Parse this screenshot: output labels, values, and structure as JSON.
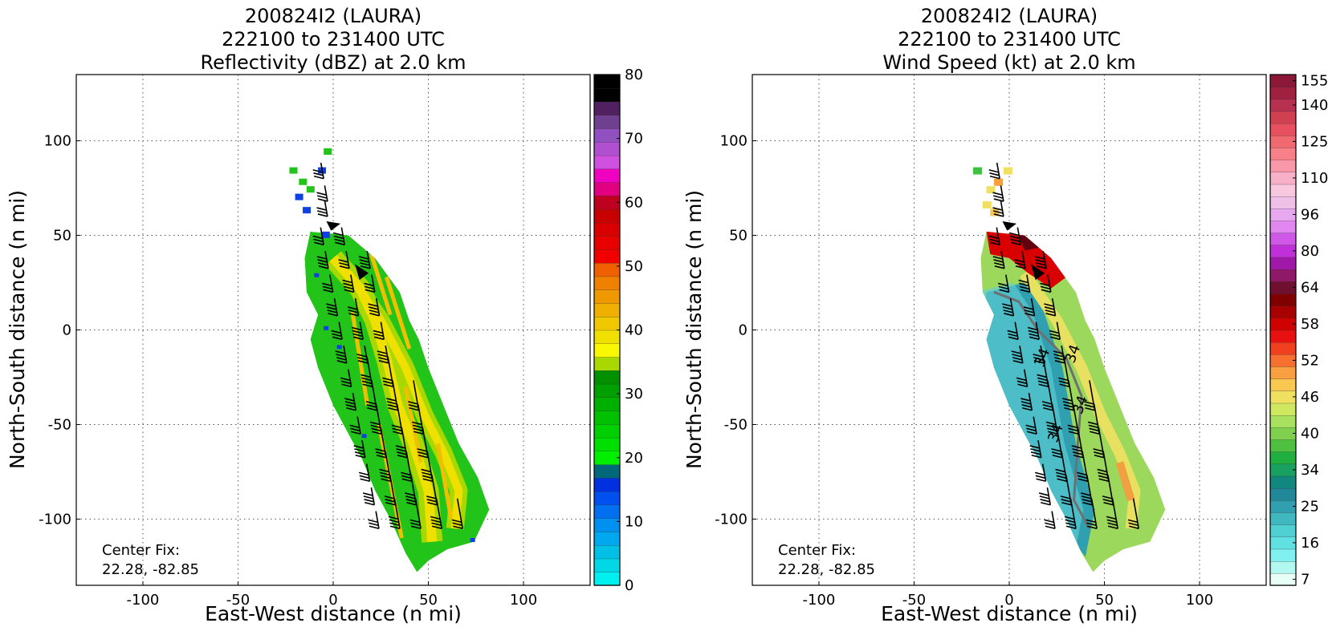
{
  "chart_data": [
    {
      "type": "heatmap",
      "title_lines": [
        "200824I2 (LAURA)",
        "222100 to 231400 UTC",
        "Reflectivity (dBZ) at 2.0 km"
      ],
      "xlabel": "East-West distance (n mi)",
      "ylabel": "North-South distance (n mi)",
      "xlim": [
        -135,
        135
      ],
      "ylim": [
        -135,
        135
      ],
      "xticks": [
        -100,
        -50,
        0,
        50,
        100
      ],
      "yticks": [
        100,
        50,
        0,
        -50,
        -100
      ],
      "grid": true,
      "center_fix_label": "Center Fix:",
      "center_fix_value": "22.28, -82.85",
      "colorbar": {
        "min": 0,
        "max": 80,
        "step": 2.5,
        "tick_labels": [
          0,
          10,
          20,
          30,
          40,
          50,
          60,
          70,
          80
        ],
        "colors": [
          "#00f0f0",
          "#00d8e8",
          "#00c0e8",
          "#00a8f0",
          "#0090f0",
          "#0070f0",
          "#0050f0",
          "#0030e0",
          "#006878",
          "#00f000",
          "#00e000",
          "#00d000",
          "#00c000",
          "#00b000",
          "#00a000",
          "#009000",
          "#a8d800",
          "#f8f800",
          "#f0e000",
          "#f0c800",
          "#f0b000",
          "#f09800",
          "#f08000",
          "#f06000",
          "#f00000",
          "#e80000",
          "#d80000",
          "#c80000",
          "#c00020",
          "#e00080",
          "#f000c0",
          "#d050e0",
          "#b050d0",
          "#9050c0",
          "#704090",
          "#502060",
          "#000000",
          "#000000"
        ]
      }
    },
    {
      "type": "heatmap",
      "title_lines": [
        "200824I2 (LAURA)",
        "222100 to 231400 UTC",
        "Wind Speed (kt) at 2.0 km"
      ],
      "xlabel": "East-West distance (n mi)",
      "ylabel": "North-South distance (n mi)",
      "xlim": [
        -135,
        135
      ],
      "ylim": [
        -135,
        135
      ],
      "xticks": [
        -100,
        -50,
        0,
        50,
        100
      ],
      "yticks": [
        100,
        50,
        0,
        -50,
        -100
      ],
      "grid": true,
      "center_fix_label": "Center Fix:",
      "center_fix_value": "22.28, -82.85",
      "contour_labels": [
        "34",
        "34",
        "34",
        "34"
      ],
      "colorbar": {
        "tick_labels": [
          7,
          16,
          25,
          34,
          40,
          46,
          52,
          58,
          64,
          80,
          96,
          110,
          125,
          140,
          155
        ],
        "colors": [
          "#e8fff8",
          "#b0f8f0",
          "#80f0f0",
          "#60e0e0",
          "#50d0d0",
          "#40b8c0",
          "#30a0b0",
          "#208898",
          "#108880",
          "#18a060",
          "#20b040",
          "#50c040",
          "#80d050",
          "#a8e060",
          "#d0e860",
          "#f0e060",
          "#f8c850",
          "#f8a040",
          "#f87030",
          "#f04020",
          "#e81010",
          "#d00000",
          "#a80000",
          "#800000",
          "#701030",
          "#901868",
          "#a018a8",
          "#c030d8",
          "#d058e8",
          "#e088f0",
          "#e8a8f0",
          "#f0c0e8",
          "#f8c8e0",
          "#f8b0c8",
          "#f898a8",
          "#f88088",
          "#f06870",
          "#e85060",
          "#d04050",
          "#b83050",
          "#a02040",
          "#8c1838"
        ]
      }
    }
  ]
}
